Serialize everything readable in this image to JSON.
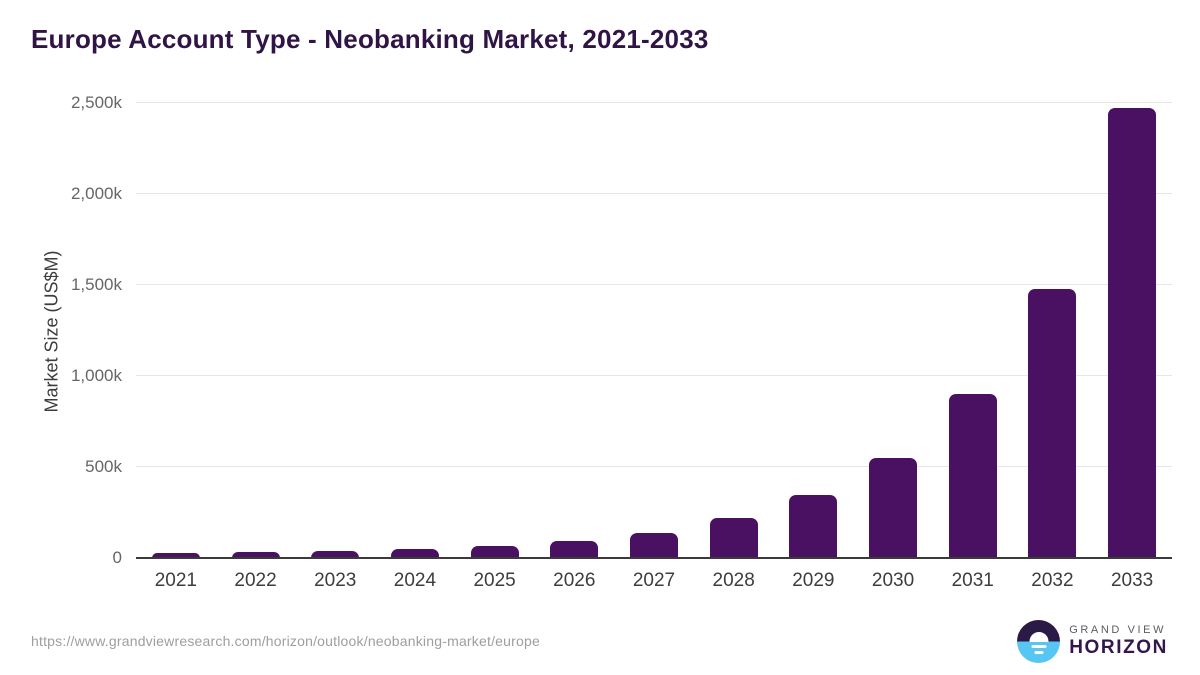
{
  "header": {
    "title": "Europe Account Type - Neobanking Market, 2021-2033"
  },
  "chart_data": {
    "type": "bar",
    "title": "Europe Account Type - Neobanking Market, 2021-2033",
    "categories": [
      "2021",
      "2022",
      "2023",
      "2024",
      "2025",
      "2026",
      "2027",
      "2028",
      "2029",
      "2030",
      "2031",
      "2032",
      "2033"
    ],
    "values": [
      25,
      33,
      40,
      51,
      66,
      94,
      139,
      220,
      348,
      552,
      900,
      1480,
      2470
    ],
    "units": "thousand US$M (k = 1,000 US$M)",
    "xlabel": "",
    "ylabel": "Market Size (US$M)",
    "ylim": [
      0,
      2500
    ],
    "yticks": [
      {
        "value": 0,
        "label": "0"
      },
      {
        "value": 500,
        "label": "500k"
      },
      {
        "value": 1000,
        "label": "1,000k"
      },
      {
        "value": 1500,
        "label": "1,500k"
      },
      {
        "value": 2000,
        "label": "2,000k"
      },
      {
        "value": 2500,
        "label": "2,500k"
      }
    ],
    "grid": true,
    "legend": false,
    "bar_color": "#4a1062"
  },
  "footer": {
    "source_url": "https://www.grandviewresearch.com/horizon/outlook/neobanking-market/europe",
    "logo": {
      "line1": "GRAND VIEW",
      "line2": "HORIZON"
    }
  },
  "colors": {
    "bar": "#4a1062",
    "title_text": "#301446",
    "axis_label_text": "#3d3d3d",
    "tick_text": "#666666",
    "gridline": "#e7e7e7",
    "axis_line": "#3a3a3a",
    "url_text": "#9e9e9e",
    "logo_dark": "#2b1a45",
    "logo_blue": "#57c6f2"
  }
}
